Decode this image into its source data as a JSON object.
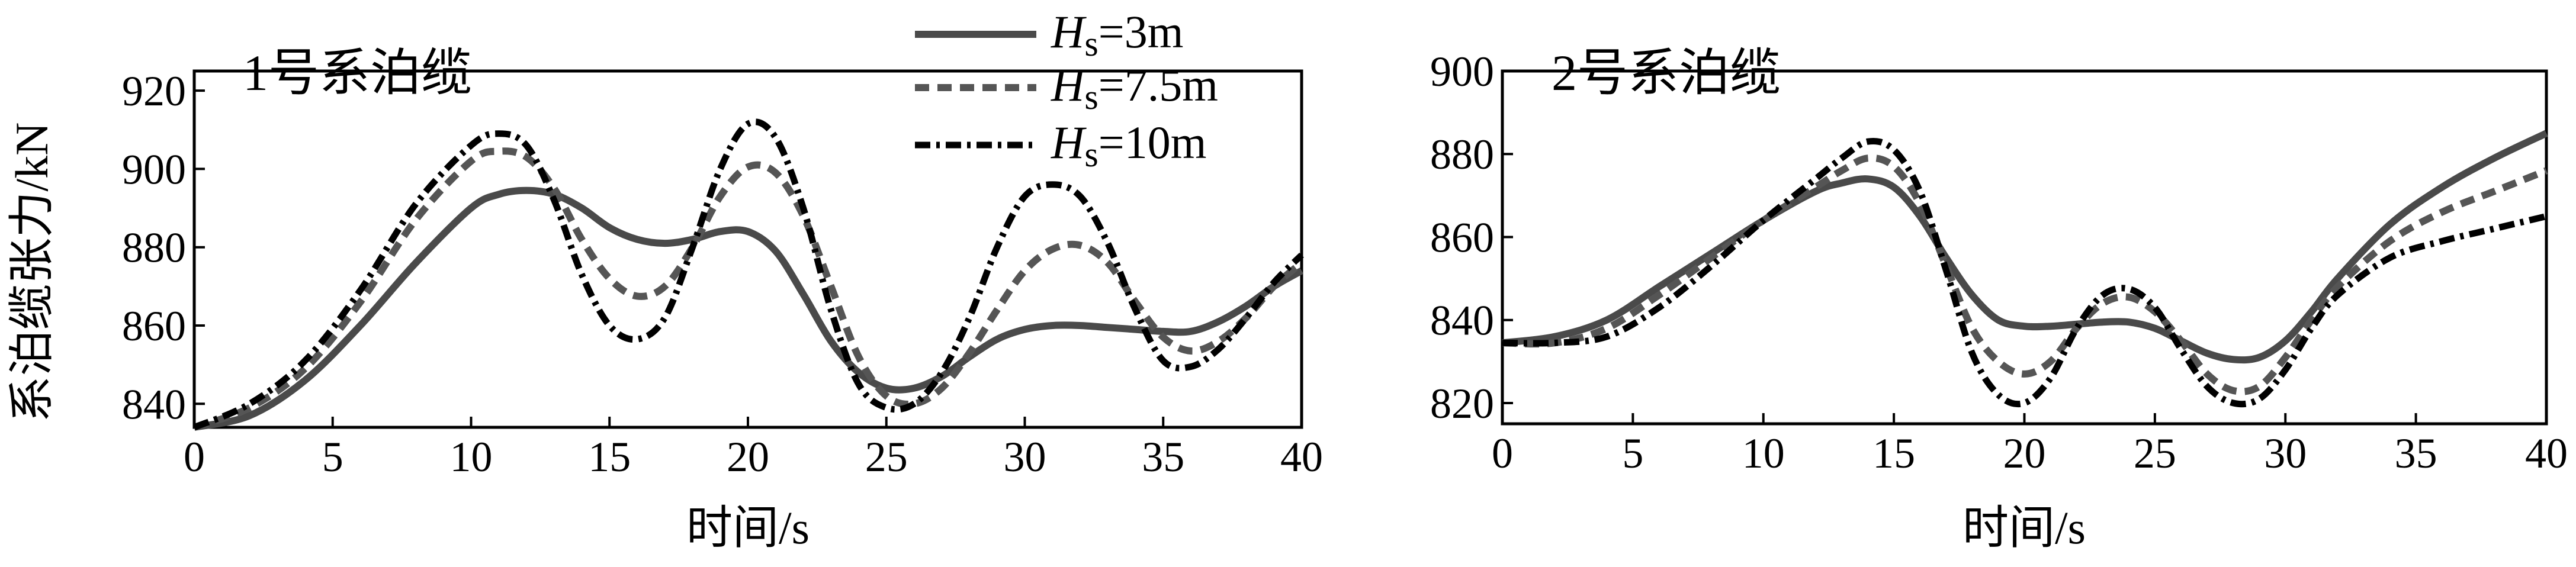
{
  "figure": {
    "ylabel": "系泊缆张力/kN",
    "legend": [
      {
        "name_main": "H",
        "name_sub": "s",
        "name_rest": "=3m",
        "style": "solid",
        "color": "#4a4a4a"
      },
      {
        "name_main": "H",
        "name_sub": "s",
        "name_rest": "=7.5m",
        "style": "dashed",
        "color": "#555555"
      },
      {
        "name_main": "H",
        "name_sub": "s",
        "name_rest": "=10m",
        "style": "dashdot",
        "color": "#000000"
      }
    ]
  },
  "chart_data": [
    {
      "type": "line",
      "title": "1号系泊缆",
      "xlabel": "时间/s",
      "ylabel": "系泊缆张力/kN",
      "xlim": [
        0,
        40
      ],
      "ylim": [
        834,
        925
      ],
      "xticks": [
        0,
        5,
        10,
        15,
        20,
        25,
        30,
        35,
        40
      ],
      "yticks": [
        840,
        860,
        880,
        900,
        920
      ],
      "grid": false,
      "legend_position": "top-center",
      "series": [
        {
          "name": "Hs=3m",
          "style": "solid",
          "color": "#4a4a4a",
          "x": [
            0,
            2,
            4,
            6,
            8,
            10,
            11,
            12,
            13,
            14,
            15,
            16,
            17,
            18,
            19,
            20,
            21,
            22,
            23,
            24,
            25,
            26,
            27,
            28,
            29,
            30,
            31,
            32,
            33,
            34,
            35,
            36,
            37,
            38,
            39,
            40
          ],
          "y": [
            834,
            837,
            846,
            860,
            876,
            890,
            893.5,
            894.5,
            893.5,
            890,
            885,
            882,
            881,
            882,
            884,
            884,
            879,
            868,
            856,
            848,
            844,
            844,
            847,
            852,
            856.5,
            859,
            860,
            860,
            859.5,
            859,
            858.5,
            858.5,
            861,
            865,
            870,
            874
          ]
        },
        {
          "name": "Hs=7.5m",
          "style": "dashed",
          "color": "#555555",
          "x": [
            0,
            2,
            4,
            6,
            8,
            10,
            11,
            12,
            13,
            14,
            15,
            16,
            17,
            18,
            19,
            20,
            21,
            22,
            23,
            24,
            25,
            26,
            27,
            28,
            29,
            30,
            31,
            32,
            33,
            34,
            35,
            36,
            37,
            38,
            39,
            40
          ],
          "y": [
            834,
            839,
            849,
            866,
            887,
            902,
            904.5,
            903,
            895,
            882,
            872,
            867.5,
            870,
            880,
            893,
            900.5,
            899,
            888,
            870,
            852,
            842,
            840,
            844,
            853,
            864,
            874,
            879.5,
            880.5,
            876,
            866,
            857,
            853.5,
            856,
            862,
            870,
            876
          ]
        },
        {
          "name": "Hs=10m",
          "style": "dashdot",
          "color": "#000000",
          "x": [
            0,
            2,
            4,
            6,
            8,
            10,
            11,
            12,
            13,
            14,
            15,
            16,
            17,
            18,
            19,
            20,
            21,
            22,
            23,
            24,
            25,
            26,
            27,
            28,
            29,
            30,
            31,
            32,
            33,
            34,
            35,
            36,
            37,
            38,
            39,
            40
          ],
          "y": [
            834,
            840,
            851,
            869,
            891,
            906,
            909,
            906,
            892,
            873,
            860,
            856.5,
            862,
            880,
            900,
            911.5,
            908,
            890,
            864,
            845,
            839,
            840,
            848,
            862,
            880,
            893,
            896,
            893,
            881,
            864,
            851,
            849.5,
            854,
            862,
            871,
            878
          ]
        }
      ]
    },
    {
      "type": "line",
      "title": "2号系泊缆",
      "xlabel": "时间/s",
      "ylabel": "",
      "xlim": [
        0,
        40
      ],
      "ylim": [
        815,
        900
      ],
      "xticks": [
        0,
        5,
        10,
        15,
        20,
        25,
        30,
        35,
        40
      ],
      "yticks": [
        820,
        840,
        860,
        880,
        900
      ],
      "grid": false,
      "series": [
        {
          "name": "Hs=3m",
          "style": "solid",
          "color": "#4a4a4a",
          "x": [
            0,
            2,
            4,
            6,
            8,
            10,
            12,
            13,
            14,
            15,
            16,
            17,
            18,
            19,
            20,
            21,
            22,
            23,
            24,
            25,
            26,
            27,
            28,
            29,
            30,
            31,
            32,
            34,
            36,
            38,
            40
          ],
          "y": [
            834.5,
            836,
            840,
            848,
            856,
            864,
            871,
            873,
            874,
            872,
            865,
            855,
            846,
            840,
            838.5,
            838.5,
            839,
            839.5,
            839.5,
            838,
            835,
            832,
            830.5,
            831,
            835,
            842,
            850,
            863,
            872,
            879,
            885
          ]
        },
        {
          "name": "Hs=7.5m",
          "style": "dashed",
          "color": "#555555",
          "x": [
            0,
            2,
            4,
            6,
            8,
            10,
            12,
            13,
            14,
            15,
            16,
            17,
            18,
            19,
            20,
            21,
            22,
            23,
            24,
            25,
            26,
            27,
            28,
            29,
            30,
            31,
            32,
            34,
            36,
            38,
            40
          ],
          "y": [
            834.5,
            834.5,
            838,
            846,
            855,
            864,
            872,
            876,
            879,
            877,
            868,
            853,
            838,
            830,
            827,
            830,
            838,
            844,
            845.5,
            842,
            835,
            827,
            823,
            824,
            831,
            840,
            848,
            859,
            866,
            871,
            876
          ]
        },
        {
          "name": "Hs=10m",
          "style": "dashdot",
          "color": "#000000",
          "x": [
            0,
            2,
            4,
            6,
            8,
            10,
            12,
            13,
            14,
            15,
            16,
            17,
            18,
            19,
            20,
            21,
            22,
            23,
            24,
            25,
            26,
            27,
            28,
            29,
            30,
            31,
            32,
            34,
            36,
            38,
            40
          ],
          "y": [
            834.5,
            834.5,
            836,
            843,
            853,
            864,
            874,
            879,
            883,
            881,
            871,
            852,
            832,
            822,
            820,
            826,
            838,
            846,
            847.5,
            843,
            833,
            824,
            820,
            821,
            828,
            838,
            846,
            855,
            859,
            862,
            865
          ]
        }
      ]
    }
  ]
}
